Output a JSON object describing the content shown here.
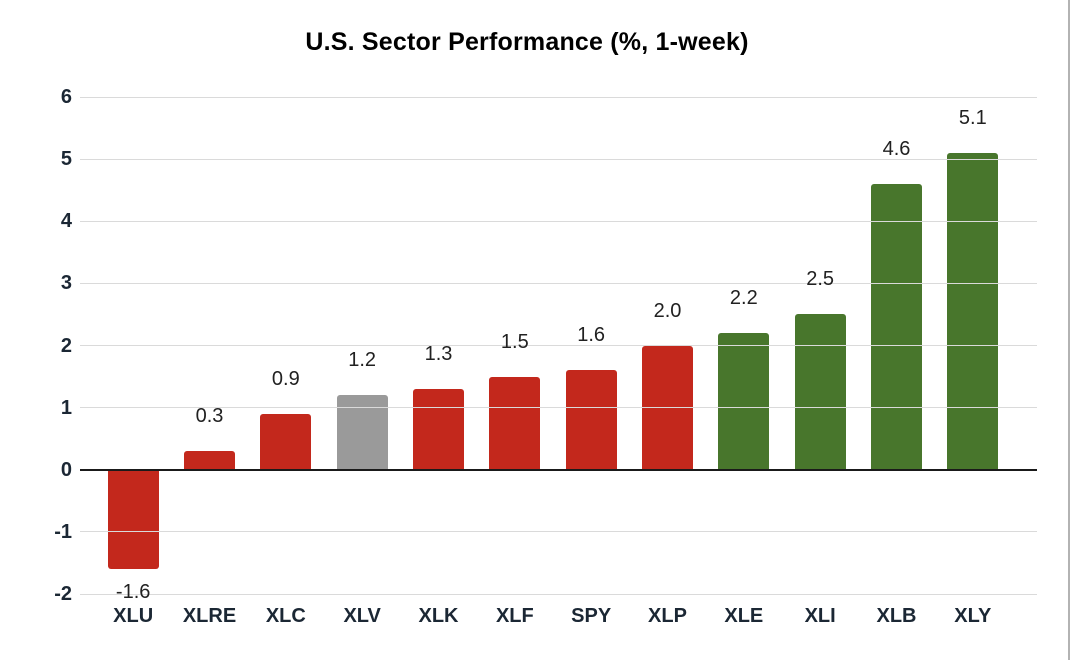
{
  "page": {
    "background": "#FFFFFF",
    "right_border_color": "#B3B3B3"
  },
  "chart_data": {
    "type": "bar",
    "title": "U.S. Sector Performance (%, 1-week)",
    "categories": [
      "XLU",
      "XLRE",
      "XLC",
      "XLV",
      "XLK",
      "XLF",
      "SPY",
      "XLP",
      "XLE",
      "XLI",
      "XLB",
      "XLY"
    ],
    "values": [
      -1.6,
      0.3,
      0.9,
      1.2,
      1.3,
      1.5,
      1.6,
      2.0,
      2.2,
      2.5,
      4.6,
      5.1
    ],
    "value_labels": [
      "-1.6",
      "0.3",
      "0.9",
      "1.2",
      "1.3",
      "1.5",
      "1.6",
      "2.0",
      "2.2",
      "2.5",
      "4.6",
      "5.1"
    ],
    "bar_color_keys": [
      "red",
      "red",
      "red",
      "gray",
      "red",
      "red",
      "red",
      "red",
      "green",
      "green",
      "green",
      "green"
    ],
    "y_ticks": [
      6,
      5,
      4,
      3,
      2,
      1,
      0,
      -1,
      -2
    ],
    "y_tick_labels": [
      "6",
      "5",
      "4",
      "3",
      "2",
      "1",
      "0",
      "-1",
      "-2"
    ],
    "ylim": [
      -2,
      6
    ],
    "xlabel": "",
    "ylabel": "",
    "grid": true,
    "legend_position": "none",
    "colors": {
      "red": "#C3281C",
      "green": "#48762C",
      "gray": "#9A9A9A"
    },
    "title_color": "#000000",
    "axis_text_color": "#1B2734",
    "value_text_color": "#212121",
    "grid_color": "#DADADA",
    "zero_line_color": "#1A1A1A"
  }
}
